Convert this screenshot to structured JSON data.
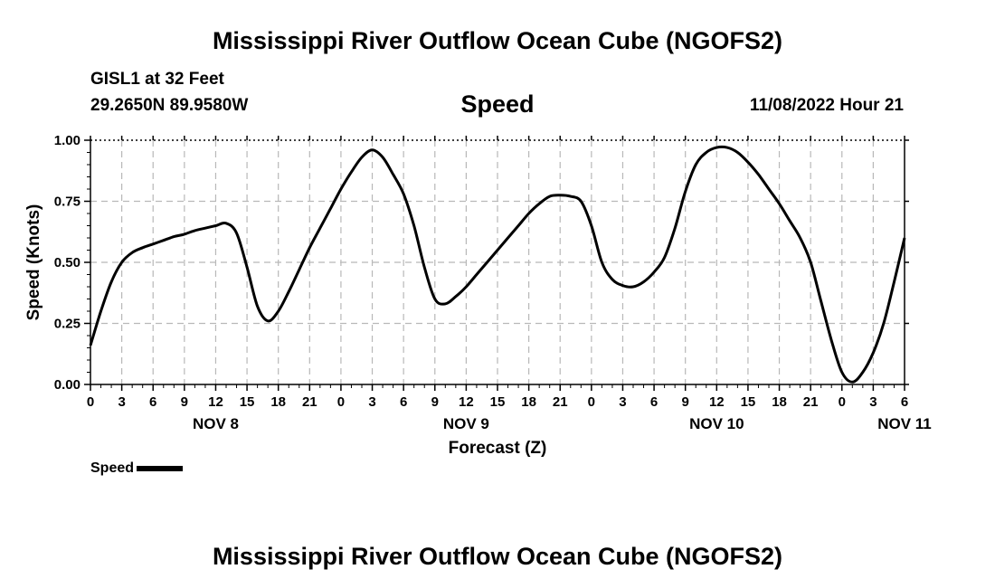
{
  "header": {
    "title": "Mississippi River Outflow Ocean Cube (NGOFS2)",
    "station": "GISL1 at 32 Feet",
    "coordinates": "29.2650N  89.9580W",
    "datetime": "11/08/2022 Hour 21"
  },
  "footer": {
    "title": "Mississippi River Outflow Ocean Cube (NGOFS2)"
  },
  "legend": {
    "label": "Speed"
  },
  "chart_data": {
    "type": "line",
    "title": "Speed",
    "xlabel": "Forecast (Z)",
    "ylabel": "Speed (Knots)",
    "ylim": [
      0,
      1.0
    ],
    "xlim": [
      0,
      78
    ],
    "x_unit": "hours since NOV 8 00Z",
    "grid": true,
    "yticks": [
      0.0,
      0.25,
      0.5,
      0.75,
      1.0
    ],
    "ytick_labels": [
      "0.00",
      "0.25",
      "0.50",
      "0.75",
      "1.00"
    ],
    "xticks": [
      0,
      3,
      6,
      9,
      12,
      15,
      18,
      21,
      24,
      27,
      30,
      33,
      36,
      39,
      42,
      45,
      48,
      51,
      54,
      57,
      60,
      63,
      66,
      69,
      72,
      75,
      78
    ],
    "xtick_labels": [
      "0",
      "3",
      "6",
      "9",
      "12",
      "15",
      "18",
      "21",
      "0",
      "3",
      "6",
      "9",
      "12",
      "15",
      "18",
      "21",
      "0",
      "3",
      "6",
      "9",
      "12",
      "15",
      "18",
      "21",
      "0",
      "3",
      "6"
    ],
    "date_labels": [
      {
        "x": 12,
        "label": "NOV 8"
      },
      {
        "x": 36,
        "label": "NOV 9"
      },
      {
        "x": 60,
        "label": "NOV 10"
      },
      {
        "x": 78,
        "label": "NOV 11"
      }
    ],
    "series": [
      {
        "name": "Speed",
        "x": [
          0,
          1,
          2,
          3,
          4,
          5,
          6,
          7,
          8,
          9,
          10,
          11,
          12,
          13,
          14,
          15,
          16,
          17,
          18,
          19,
          20,
          21,
          22,
          23,
          24,
          25,
          26,
          27,
          28,
          29,
          30,
          31,
          32,
          33,
          34,
          35,
          36,
          37,
          38,
          39,
          40,
          41,
          42,
          43,
          44,
          45,
          46,
          47,
          48,
          49,
          50,
          51,
          52,
          53,
          54,
          55,
          56,
          57,
          58,
          59,
          60,
          61,
          62,
          63,
          64,
          65,
          66,
          67,
          68,
          69,
          70,
          71,
          72,
          73,
          74,
          75,
          76,
          77,
          78
        ],
        "values": [
          0.16,
          0.3,
          0.42,
          0.5,
          0.54,
          0.56,
          0.575,
          0.59,
          0.605,
          0.615,
          0.63,
          0.64,
          0.65,
          0.66,
          0.62,
          0.48,
          0.32,
          0.26,
          0.3,
          0.38,
          0.47,
          0.56,
          0.64,
          0.72,
          0.8,
          0.87,
          0.93,
          0.96,
          0.93,
          0.86,
          0.78,
          0.65,
          0.48,
          0.35,
          0.33,
          0.36,
          0.4,
          0.45,
          0.5,
          0.55,
          0.6,
          0.65,
          0.7,
          0.74,
          0.77,
          0.775,
          0.77,
          0.75,
          0.65,
          0.5,
          0.43,
          0.405,
          0.4,
          0.42,
          0.46,
          0.52,
          0.64,
          0.79,
          0.9,
          0.95,
          0.97,
          0.97,
          0.95,
          0.91,
          0.86,
          0.8,
          0.74,
          0.67,
          0.6,
          0.5,
          0.34,
          0.18,
          0.05,
          0.01,
          0.05,
          0.13,
          0.25,
          0.42,
          0.6
        ]
      }
    ]
  }
}
